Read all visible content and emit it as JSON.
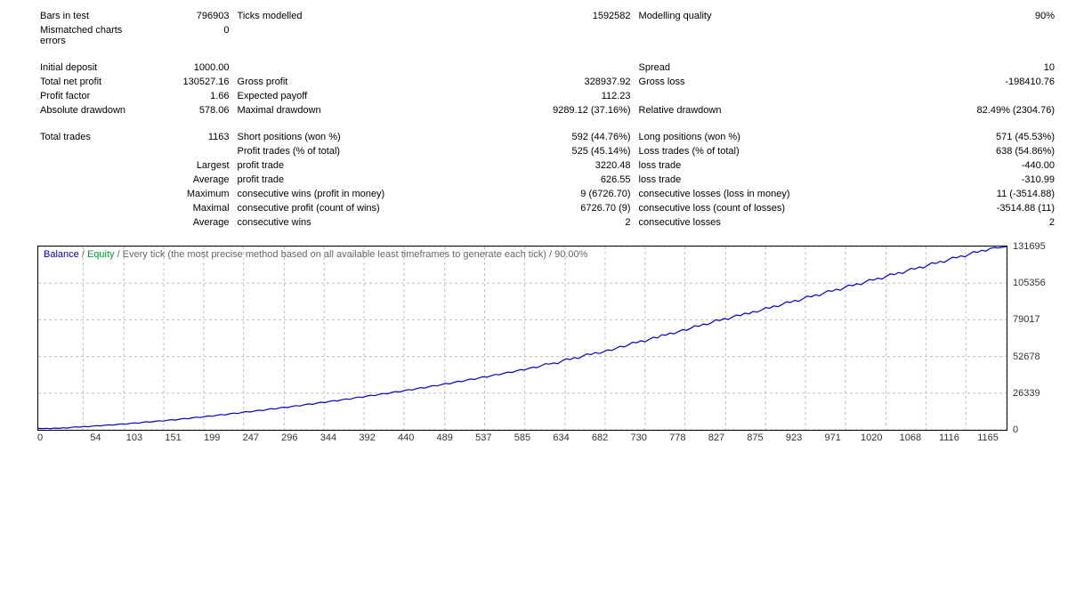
{
  "stats": {
    "bars_in_test_label": "Bars in test",
    "bars_in_test": "796903",
    "ticks_modelled_label": "Ticks modelled",
    "ticks_modelled": "1592582",
    "modelling_quality_label": "Modelling quality",
    "modelling_quality": "90%",
    "mismatched_label": "Mismatched charts errors",
    "mismatched": "0",
    "initial_deposit_label": "Initial deposit",
    "initial_deposit": "1000.00",
    "spread_label": "Spread",
    "spread": "10",
    "total_net_profit_label": "Total net profit",
    "total_net_profit": "130527.16",
    "gross_profit_label": "Gross profit",
    "gross_profit": "328937.92",
    "gross_loss_label": "Gross loss",
    "gross_loss": "-198410.76",
    "profit_factor_label": "Profit factor",
    "profit_factor": "1.66",
    "expected_payoff_label": "Expected payoff",
    "expected_payoff": "112.23",
    "abs_drawdown_label": "Absolute drawdown",
    "abs_drawdown": "578.06",
    "max_drawdown_label": "Maximal drawdown",
    "max_drawdown": "9289.12 (37.16%)",
    "rel_drawdown_label": "Relative drawdown",
    "rel_drawdown": "82.49% (2304.76)",
    "total_trades_label": "Total trades",
    "total_trades": "1163",
    "short_pos_label": "Short positions (won %)",
    "short_pos": "592 (44.76%)",
    "long_pos_label": "Long positions (won %)",
    "long_pos": "571 (45.53%)",
    "profit_trades_label": "Profit trades (% of total)",
    "profit_trades": "525 (45.14%)",
    "loss_trades_label": "Loss trades (% of total)",
    "loss_trades": "638 (54.86%)",
    "largest_label": "Largest",
    "largest_profit_label": "profit trade",
    "largest_profit": "3220.48",
    "largest_loss_label": "loss trade",
    "largest_loss": "-440.00",
    "average_label": "Average",
    "avg_profit_label": "profit trade",
    "avg_profit": "626.55",
    "avg_loss_label": "loss trade",
    "avg_loss": "-310.99",
    "maximum_label": "Maximum",
    "max_cons_wins_label": "consecutive wins (profit in money)",
    "max_cons_wins": "9 (6726.70)",
    "max_cons_losses_label": "consecutive losses (loss in money)",
    "max_cons_losses": "11 (-3514.88)",
    "maximal_label": "Maximal",
    "max_cons_profit_label": "consecutive profit (count of wins)",
    "max_cons_profit": "6726.70 (9)",
    "max_cons_loss_label": "consecutive loss (count of losses)",
    "max_cons_loss": "-3514.88 (11)",
    "avg2_label": "Average",
    "avg_cons_wins_label": "consecutive wins",
    "avg_cons_wins": "2",
    "avg_cons_losses_label": "consecutive losses",
    "avg_cons_losses": "2"
  },
  "chart": {
    "title_parts": {
      "balance": "Balance",
      "sep": " / ",
      "equity": "Equity",
      "rest": " / Every tick (the most precise method based on all available least timeframes to generate each tick) / 90.00%"
    },
    "type": "line",
    "line_color": "#0000c8",
    "line_width": 1.2,
    "grid_color": "#bfbfbf",
    "grid_dash": "3,3",
    "background": "#ffffff",
    "border_color": "#000000",
    "ylim": [
      0,
      131695
    ],
    "yticks": [
      0,
      26339,
      52678,
      79017,
      105356,
      131695
    ],
    "xlim": [
      0,
      1165
    ],
    "xticks": [
      0,
      54,
      103,
      151,
      199,
      247,
      296,
      344,
      392,
      440,
      489,
      537,
      585,
      634,
      682,
      730,
      778,
      827,
      875,
      923,
      971,
      1020,
      1068,
      1116,
      1165
    ],
    "series_x_step": 5,
    "series_y": [
      1000,
      900,
      1100,
      800,
      1300,
      1000,
      1500,
      1200,
      1800,
      2100,
      1900,
      2400,
      2200,
      2700,
      3000,
      2800,
      3300,
      3600,
      3400,
      3900,
      4300,
      4000,
      4600,
      5000,
      4700,
      5300,
      5800,
      5500,
      6100,
      6500,
      6200,
      6900,
      7300,
      7000,
      7700,
      8200,
      7900,
      8600,
      9100,
      8800,
      9500,
      10000,
      9700,
      10500,
      11000,
      10700,
      11500,
      12000,
      11700,
      12500,
      13100,
      12800,
      13500,
      14100,
      13800,
      14600,
      15200,
      14900,
      15700,
      16300,
      16000,
      16800,
      17400,
      17100,
      18000,
      18600,
      18300,
      19200,
      19800,
      19500,
      20400,
      21000,
      20700,
      21600,
      22200,
      21900,
      22900,
      23500,
      23200,
      24200,
      24800,
      24500,
      25500,
      26100,
      25800,
      26800,
      27500,
      27200,
      28200,
      28900,
      28600,
      29600,
      30300,
      30000,
      31000,
      31800,
      31500,
      32500,
      33300,
      33000,
      34100,
      34900,
      34600,
      35700,
      36500,
      36200,
      37300,
      38100,
      37800,
      38900,
      39800,
      39500,
      40600,
      41500,
      41200,
      42300,
      43200,
      42900,
      44100,
      45000,
      44700,
      46000,
      47500,
      47200,
      48000,
      47500,
      49500,
      51000,
      50500,
      52000,
      51200,
      53000,
      54500,
      54000,
      55500,
      54800,
      56000,
      57500,
      57000,
      58500,
      60000,
      59500,
      61000,
      63000,
      62500,
      64000,
      63200,
      65000,
      66500,
      66000,
      68300,
      68000,
      69500,
      69000,
      70500,
      72000,
      71500,
      73000,
      74800,
      74300,
      76000,
      75500,
      77000,
      79000,
      78500,
      80000,
      79300,
      81000,
      82500,
      82000,
      83800,
      83300,
      85000,
      84500,
      86000,
      87800,
      87300,
      89000,
      88500,
      90000,
      92000,
      91500,
      93000,
      92300,
      94200,
      96000,
      95500,
      97000,
      96300,
      98200,
      100000,
      99500,
      101000,
      100300,
      102200,
      104000,
      103500,
      105000,
      104300,
      106200,
      108000,
      107500,
      109000,
      108300,
      110200,
      112000,
      111500,
      113000,
      112300,
      114200,
      116000,
      115500,
      117000,
      116300,
      118200,
      120000,
      119500,
      121000,
      120300,
      122200,
      124000,
      123500,
      125000,
      124300,
      126200,
      128000,
      127500,
      129000,
      128300,
      130200,
      131000,
      130600,
      131200,
      131695
    ]
  }
}
